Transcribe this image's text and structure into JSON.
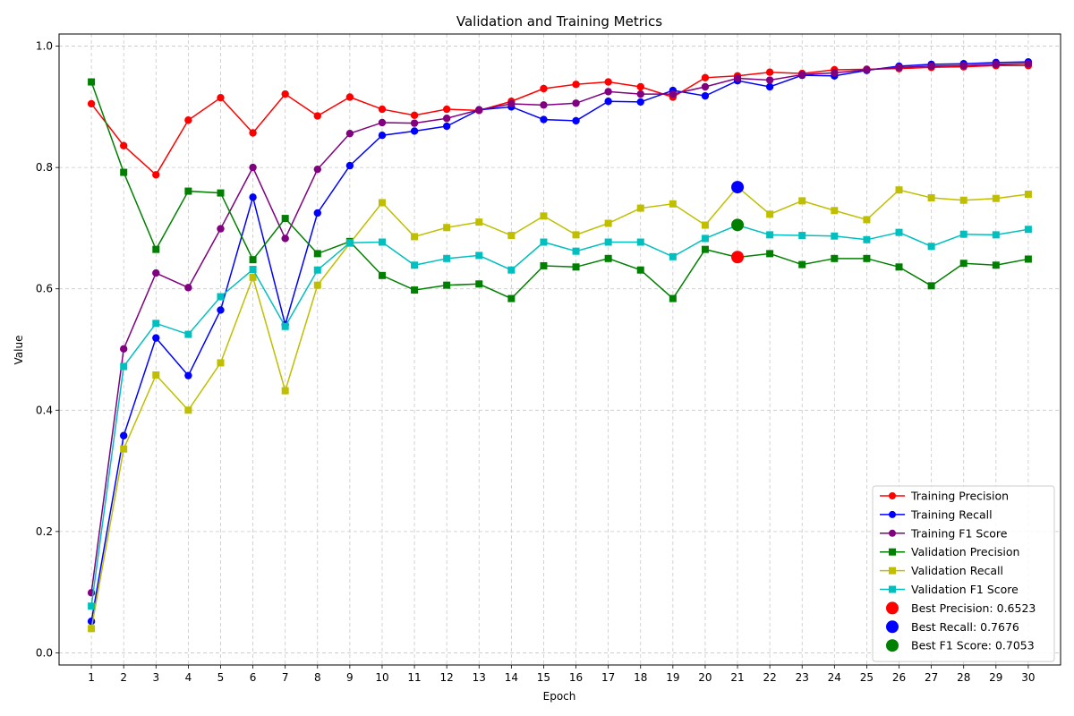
{
  "chart_data": {
    "type": "line",
    "title": "Validation and Training Metrics",
    "xlabel": "Epoch",
    "ylabel": "Value",
    "x": [
      1,
      2,
      3,
      4,
      5,
      6,
      7,
      8,
      9,
      10,
      11,
      12,
      13,
      14,
      15,
      16,
      17,
      18,
      19,
      20,
      21,
      22,
      23,
      24,
      25,
      26,
      27,
      28,
      29,
      30
    ],
    "xlim": [
      0,
      31
    ],
    "ylim": [
      -0.02,
      1.02
    ],
    "yticks": [
      0.0,
      0.2,
      0.4,
      0.6,
      0.8,
      1.0
    ],
    "ytick_labels": [
      "0.0",
      "0.2",
      "0.4",
      "0.6",
      "0.8",
      "1.0"
    ],
    "grid": true,
    "legend_position": "bottom-right",
    "series": [
      {
        "name": "Training Precision",
        "color": "#ff0000",
        "marker": "circle",
        "values": [
          0.905,
          0.836,
          0.788,
          0.878,
          0.915,
          0.857,
          0.921,
          0.885,
          0.916,
          0.896,
          0.886,
          0.896,
          0.894,
          0.909,
          0.93,
          0.937,
          0.941,
          0.933,
          0.916,
          0.948,
          0.951,
          0.957,
          0.955,
          0.961,
          0.962,
          0.963,
          0.965,
          0.966,
          0.968,
          0.968
        ]
      },
      {
        "name": "Training Recall",
        "color": "#0000ff",
        "marker": "circle",
        "values": [
          0.052,
          0.358,
          0.519,
          0.457,
          0.565,
          0.751,
          0.541,
          0.725,
          0.803,
          0.853,
          0.86,
          0.868,
          0.895,
          0.9,
          0.879,
          0.877,
          0.909,
          0.908,
          0.927,
          0.918,
          0.943,
          0.933,
          0.952,
          0.951,
          0.96,
          0.967,
          0.97,
          0.971,
          0.973,
          0.974
        ]
      },
      {
        "name": "Training F1 Score",
        "color": "#800080",
        "marker": "circle",
        "values": [
          0.099,
          0.501,
          0.626,
          0.602,
          0.699,
          0.8,
          0.683,
          0.797,
          0.856,
          0.874,
          0.873,
          0.881,
          0.895,
          0.905,
          0.903,
          0.906,
          0.925,
          0.921,
          0.921,
          0.933,
          0.947,
          0.944,
          0.953,
          0.956,
          0.961,
          0.965,
          0.967,
          0.968,
          0.97,
          0.971
        ]
      },
      {
        "name": "Validation Precision",
        "color": "#008000",
        "marker": "square",
        "values": [
          0.941,
          0.792,
          0.665,
          0.761,
          0.758,
          0.648,
          0.716,
          0.658,
          0.678,
          0.622,
          0.598,
          0.606,
          0.608,
          0.584,
          0.638,
          0.636,
          0.65,
          0.631,
          0.584,
          0.665,
          0.652,
          0.658,
          0.64,
          0.65,
          0.65,
          0.636,
          0.605,
          0.642,
          0.639,
          0.649
        ]
      },
      {
        "name": "Validation Recall",
        "color": "#bfbf00",
        "marker": "square",
        "values": [
          0.04,
          0.336,
          0.458,
          0.4,
          0.478,
          0.619,
          0.432,
          0.606,
          0.675,
          0.742,
          0.686,
          0.701,
          0.71,
          0.688,
          0.72,
          0.689,
          0.708,
          0.733,
          0.74,
          0.705,
          0.768,
          0.723,
          0.745,
          0.729,
          0.714,
          0.763,
          0.75,
          0.746,
          0.749,
          0.756
        ]
      },
      {
        "name": "Validation F1 Score",
        "color": "#00bfbf",
        "marker": "square",
        "values": [
          0.077,
          0.472,
          0.543,
          0.525,
          0.587,
          0.632,
          0.538,
          0.631,
          0.676,
          0.677,
          0.639,
          0.65,
          0.655,
          0.631,
          0.677,
          0.662,
          0.677,
          0.677,
          0.653,
          0.683,
          0.705,
          0.689,
          0.688,
          0.687,
          0.681,
          0.693,
          0.67,
          0.69,
          0.689,
          0.698
        ]
      }
    ],
    "highlights": [
      {
        "name": "Best Precision: 0.6523",
        "color": "#ff0000",
        "x": 21,
        "y": 0.6523
      },
      {
        "name": "Best Recall: 0.7676",
        "color": "#0000ff",
        "x": 21,
        "y": 0.7676
      },
      {
        "name": "Best F1 Score: 0.7053",
        "color": "#008000",
        "x": 21,
        "y": 0.7053
      }
    ]
  }
}
